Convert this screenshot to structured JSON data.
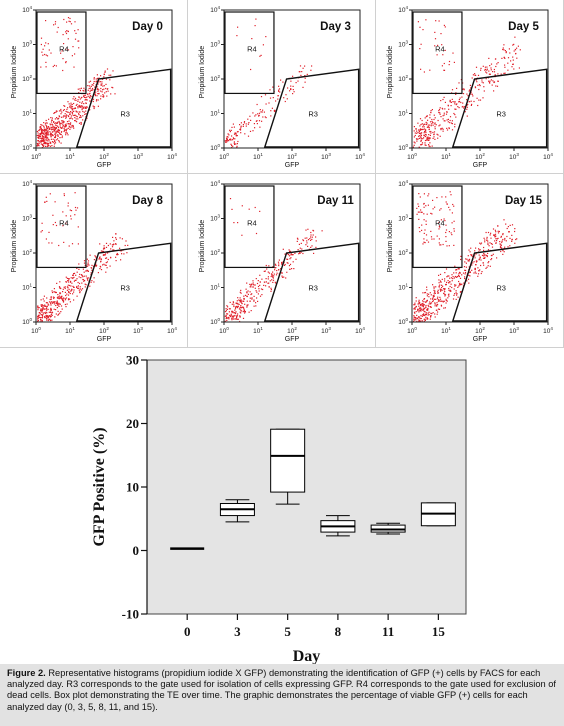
{
  "flow_panels": [
    {
      "title": "Day 0",
      "x_label": "GFP",
      "y_label": "Propidium Iodide",
      "gate_r4": "R4",
      "gate_r3": "R3"
    },
    {
      "title": "Day 3",
      "x_label": "GFP",
      "y_label": "Propidium Iodide",
      "gate_r4": "R4",
      "gate_r3": "R3"
    },
    {
      "title": "Day 5",
      "x_label": "GFP",
      "y_label": "Propidium Iodide",
      "gate_r4": "R4",
      "gate_r3": "R3"
    },
    {
      "title": "Day 8",
      "x_label": "GFP",
      "y_label": "Propidium Iodide",
      "gate_r4": "R4",
      "gate_r3": "R3"
    },
    {
      "title": "Day 11",
      "x_label": "GFP",
      "y_label": "Propidium Iodide",
      "gate_r4": "R4",
      "gate_r3": "R3"
    },
    {
      "title": "Day 15",
      "x_label": "GFP",
      "y_label": "Propidium Iodide",
      "gate_r4": "R4",
      "gate_r3": "R3"
    }
  ],
  "log_ticks": [
    {
      "base": "10",
      "exp": "0"
    },
    {
      "base": "10",
      "exp": "1"
    },
    {
      "base": "10",
      "exp": "2"
    },
    {
      "base": "10",
      "exp": "3"
    },
    {
      "base": "10",
      "exp": "4"
    }
  ],
  "colors": {
    "dots": "#e0202a",
    "plot_bg": "#e4e4e4",
    "caption_bg": "#e2e2e2"
  },
  "chart_data": {
    "type": "box",
    "title": "",
    "xlabel": "Day",
    "ylabel": "GFP Positive (%)",
    "categories": [
      "0",
      "3",
      "5",
      "8",
      "11",
      "15"
    ],
    "ylim": [
      -10,
      30
    ],
    "yticks": [
      -10,
      0,
      10,
      20,
      30
    ],
    "ytick_labels": [
      "-10",
      "0",
      "10",
      "20",
      "30"
    ],
    "boxes": [
      {
        "day": "0",
        "min": 0.3,
        "q1": 0.3,
        "median": 0.3,
        "q3": 0.3,
        "max": 0.3
      },
      {
        "day": "3",
        "min": 4.5,
        "q1": 5.5,
        "median": 6.5,
        "q3": 7.4,
        "max": 8.0
      },
      {
        "day": "5",
        "min": 7.3,
        "q1": 9.2,
        "median": 14.9,
        "q3": 19.1,
        "max": 19.1
      },
      {
        "day": "8",
        "min": 2.3,
        "q1": 2.9,
        "median": 3.8,
        "q3": 4.7,
        "max": 5.5
      },
      {
        "day": "11",
        "min": 2.6,
        "q1": 2.9,
        "median": 3.3,
        "q3": 4.0,
        "max": 4.3
      },
      {
        "day": "15",
        "min": 3.9,
        "q1": 3.9,
        "median": 5.8,
        "q3": 7.5,
        "max": 7.5
      }
    ],
    "grid": false
  },
  "caption": {
    "lead": "Figure 2.",
    "text": " Representative histograms (propidium iodide X GFP) demonstrating the identification of GFP (+) cells by FACS for each analyzed day. R3 corresponds to the gate used for isolation of cells expressing GFP. R4 corresponds to the gate used for exclusion of dead cells. Box plot demonstrating the TE over time. The graphic demonstrates the percentage of viable GFP (+) cells for each analyzed day (0, 3, 5, 8, 11, and 15)."
  }
}
